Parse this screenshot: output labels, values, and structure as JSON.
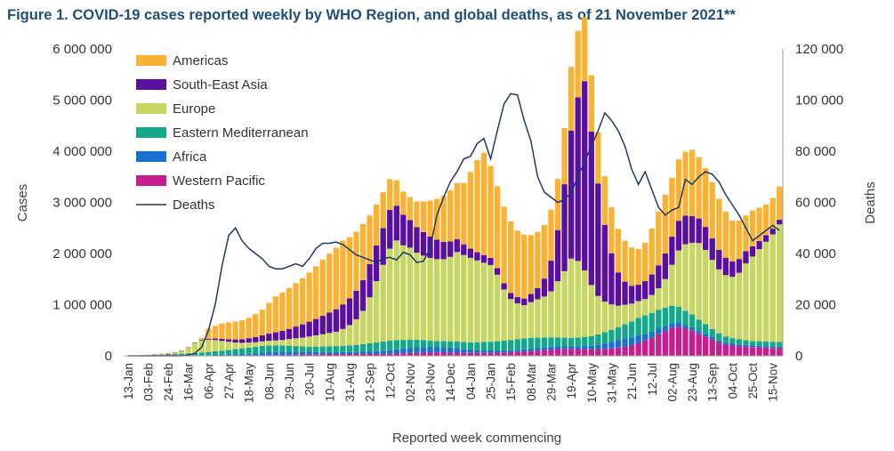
{
  "title": "Figure 1. COVID-19 cases reported weekly by WHO Region, and global deaths, as of 21 November 2021**",
  "chart_data": {
    "type": "bar",
    "stacked": true,
    "xlabel": "Reported week commencing",
    "ylabel": "Cases",
    "y2label": "Deaths",
    "ylim": [
      0,
      6000000
    ],
    "y2lim": [
      0,
      120000
    ],
    "yticks": [
      "0",
      "1 000 000",
      "2 000 000",
      "3 000 000",
      "4 000 000",
      "5 000 000",
      "6 000 000"
    ],
    "y2ticks": [
      "0",
      "20 000",
      "40 000",
      "60 000",
      "80 000",
      "100 000",
      "120 000"
    ],
    "tick_labels": [
      "13-Jan",
      "03-Feb",
      "24-Feb",
      "16-Mar",
      "06-Apr",
      "27-Apr",
      "18-May",
      "08-Jun",
      "29-Jun",
      "20-Jul",
      "10-Aug",
      "31-Aug",
      "21-Sep",
      "12-Oct",
      "02-Nov",
      "23-Nov",
      "14-Dec",
      "04-Jan",
      "25-Jan",
      "15-Feb",
      "08-Mar",
      "29-Mar",
      "19-Apr",
      "10-May",
      "31-May",
      "21-Jun",
      "12-Jul",
      "02-Aug",
      "23-Aug",
      "13-Sep",
      "04-Oct",
      "25-Oct",
      "15-Nov"
    ],
    "legend": [
      "Americas",
      "South-East Asia",
      "Europe",
      "Eastern Mediterranean",
      "Africa",
      "Western Pacific",
      "Deaths"
    ],
    "colors": {
      "Americas": "#f9b233",
      "South-East Asia": "#5a0fa0",
      "Europe": "#c6d660",
      "Eastern Mediterranean": "#14a88a",
      "Africa": "#1a6fd1",
      "Western Pacific": "#c71d8f",
      "Deaths": "#1f3864"
    },
    "weeks": 98,
    "series_unit": "thousands of cases",
    "series": [
      {
        "name": "Western Pacific",
        "values": [
          2,
          5,
          10,
          15,
          20,
          20,
          25,
          20,
          15,
          12,
          10,
          8,
          7,
          8,
          9,
          10,
          10,
          10,
          10,
          10,
          12,
          14,
          15,
          18,
          20,
          22,
          25,
          28,
          30,
          32,
          35,
          35,
          35,
          35,
          35,
          35,
          35,
          35,
          38,
          40,
          45,
          50,
          55,
          55,
          60,
          60,
          65,
          70,
          65,
          60,
          55,
          55,
          55,
          55,
          55,
          60,
          65,
          70,
          75,
          80,
          90,
          100,
          110,
          120,
          130,
          135,
          135,
          130,
          130,
          125,
          130,
          135,
          145,
          160,
          180,
          200,
          250,
          300,
          350,
          420,
          480,
          550,
          570,
          530,
          500,
          430,
          380,
          320,
          260,
          220,
          200,
          190,
          180,
          170,
          165,
          160,
          155,
          150
        ]
      },
      {
        "name": "Africa",
        "values": [
          0,
          0,
          0,
          0,
          0,
          0,
          0,
          0,
          0,
          2,
          3,
          5,
          7,
          10,
          12,
          15,
          20,
          25,
          30,
          40,
          50,
          55,
          60,
          62,
          62,
          60,
          55,
          50,
          45,
          40,
          38,
          36,
          35,
          37,
          40,
          45,
          50,
          55,
          60,
          70,
          80,
          90,
          100,
          110,
          110,
          105,
          100,
          100,
          95,
          90,
          80,
          70,
          60,
          55,
          50,
          45,
          42,
          40,
          42,
          45,
          50,
          55,
          60,
          60,
          58,
          55,
          55,
          55,
          60,
          70,
          90,
          110,
          130,
          150,
          160,
          160,
          150,
          130,
          120,
          110,
          100,
          90,
          80,
          70,
          60,
          55,
          50,
          45,
          40,
          38,
          35,
          33,
          32,
          31,
          30,
          30,
          30,
          30
        ]
      },
      {
        "name": "Eastern Mediterranean",
        "values": [
          2,
          2,
          2,
          2,
          5,
          10,
          15,
          20,
          25,
          30,
          40,
          50,
          60,
          70,
          80,
          90,
          100,
          110,
          120,
          125,
          130,
          130,
          125,
          120,
          115,
          110,
          105,
          100,
          105,
          110,
          115,
          120,
          125,
          130,
          140,
          150,
          160,
          170,
          180,
          185,
          180,
          170,
          160,
          150,
          140,
          130,
          125,
          120,
          125,
          130,
          135,
          140,
          150,
          160,
          170,
          180,
          190,
          200,
          210,
          215,
          210,
          200,
          190,
          180,
          170,
          165,
          160,
          170,
          180,
          190,
          200,
          215,
          230,
          250,
          280,
          310,
          340,
          360,
          370,
          370,
          360,
          340,
          310,
          280,
          250,
          220,
          190,
          160,
          140,
          120,
          110,
          100,
          95,
          90,
          90,
          90,
          90,
          90
        ]
      },
      {
        "name": "Europe",
        "values": [
          0,
          0,
          2,
          5,
          10,
          15,
          20,
          30,
          60,
          120,
          200,
          240,
          240,
          220,
          190,
          160,
          130,
          110,
          100,
          90,
          90,
          95,
          100,
          110,
          130,
          150,
          170,
          200,
          220,
          240,
          260,
          280,
          330,
          400,
          500,
          650,
          900,
          1200,
          1500,
          1800,
          1950,
          1850,
          1800,
          1700,
          1650,
          1620,
          1600,
          1600,
          1650,
          1750,
          1700,
          1650,
          1600,
          1550,
          1500,
          1300,
          1000,
          800,
          700,
          650,
          700,
          750,
          800,
          900,
          1100,
          1300,
          1550,
          1500,
          1300,
          1000,
          750,
          600,
          500,
          420,
          380,
          350,
          330,
          320,
          350,
          420,
          560,
          800,
          1100,
          1300,
          1400,
          1500,
          1450,
          1350,
          1250,
          1200,
          1200,
          1300,
          1500,
          1650,
          1800,
          1950,
          2100,
          2300
        ]
      },
      {
        "name": "South-East Asia",
        "values": [
          0,
          0,
          0,
          0,
          0,
          0,
          0,
          1,
          2,
          4,
          7,
          12,
          20,
          30,
          40,
          50,
          60,
          70,
          85,
          100,
          120,
          140,
          160,
          180,
          200,
          230,
          260,
          290,
          320,
          360,
          400,
          440,
          480,
          520,
          560,
          600,
          650,
          700,
          720,
          760,
          680,
          600,
          540,
          500,
          460,
          420,
          380,
          340,
          300,
          250,
          210,
          180,
          160,
          150,
          140,
          130,
          120,
          120,
          120,
          130,
          160,
          220,
          350,
          600,
          1000,
          1700,
          2500,
          3200,
          3700,
          3000,
          2200,
          1500,
          1000,
          650,
          450,
          350,
          320,
          350,
          400,
          450,
          500,
          550,
          580,
          560,
          520,
          480,
          450,
          420,
          380,
          340,
          300,
          270,
          240,
          200,
          160,
          130,
          110,
          90
        ]
      },
      {
        "name": "Americas",
        "values": [
          0,
          0,
          0,
          0,
          0,
          0,
          0,
          0,
          0,
          2,
          5,
          30,
          200,
          250,
          300,
          330,
          350,
          370,
          400,
          450,
          500,
          600,
          700,
          750,
          800,
          850,
          900,
          960,
          1030,
          1100,
          1150,
          1200,
          1250,
          1200,
          1150,
          1100,
          950,
          800,
          700,
          600,
          500,
          450,
          450,
          500,
          600,
          700,
          800,
          900,
          1000,
          1100,
          1200,
          1500,
          1800,
          2000,
          1800,
          1600,
          1500,
          1400,
          1300,
          1250,
          1150,
          1100,
          1050,
          1000,
          1000,
          1100,
          1250,
          1300,
          1250,
          1100,
          1000,
          950,
          900,
          850,
          800,
          750,
          700,
          750,
          900,
          1050,
          1150,
          1150,
          1200,
          1250,
          1300,
          1200,
          1150,
          1100,
          1000,
          900,
          800,
          750,
          700,
          700,
          650,
          600,
          600,
          650
        ]
      }
    ],
    "deaths": [
      0,
      0,
      0,
      0,
      0,
      0,
      0,
      0,
      0,
      300,
      1000,
      3500,
      10000,
      20000,
      35000,
      47000,
      50000,
      45000,
      42000,
      40000,
      38000,
      35000,
      34000,
      34000,
      35000,
      36000,
      35000,
      38000,
      42000,
      44000,
      44000,
      44500,
      43500,
      41500,
      39500,
      38500,
      37500,
      36500,
      38000,
      38500,
      37500,
      40500,
      39500,
      36500,
      37000,
      42000,
      55000,
      62000,
      68000,
      72000,
      77000,
      78000,
      83000,
      85000,
      77000,
      88000,
      98500,
      102500,
      102000,
      92000,
      84000,
      70000,
      64000,
      62000,
      60000,
      61000,
      64000,
      70000,
      76000,
      82000,
      88000,
      95000,
      92000,
      88000,
      82000,
      73000,
      67000,
      72000,
      65000,
      58000,
      55000,
      57000,
      58000,
      69000,
      67000,
      70000,
      72000,
      71000,
      68000,
      63000,
      59000,
      55000,
      50000,
      45000,
      47000,
      49000,
      51000,
      49000
    ]
  }
}
